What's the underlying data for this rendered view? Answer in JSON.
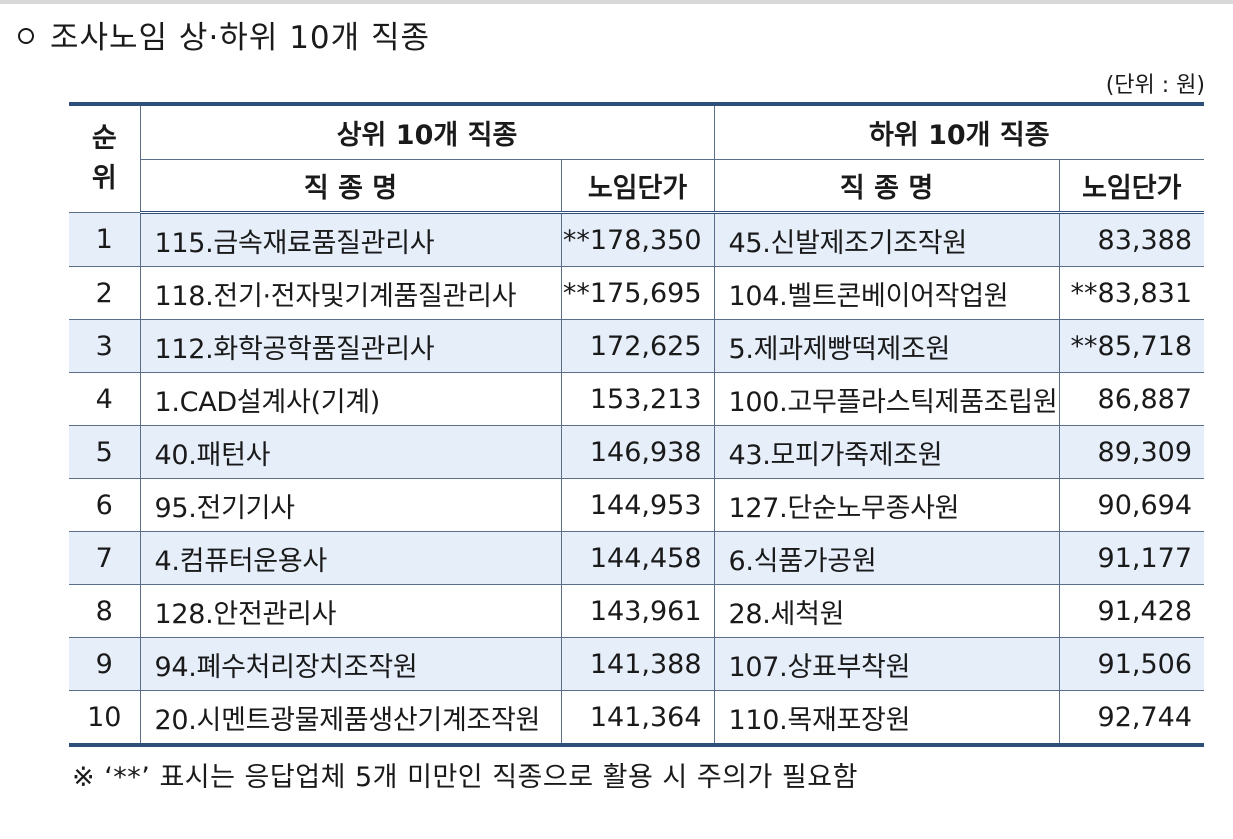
{
  "heading": "조사노임 상·하위 10개 직종",
  "unit": "(단위 : 원)",
  "table": {
    "rank_header": "순 위",
    "rank_header_top": "순",
    "rank_header_bottom": "위",
    "upper_group": "상위 10개 직종",
    "lower_group": "하위 10개 직종",
    "name_header": "직 종 명",
    "wage_header": "노임단가",
    "rows": [
      {
        "rank": "1",
        "upper_name": "115.금속재료품질관리사",
        "upper_wage": "**178,350",
        "lower_name": "45.신발제조기조작원",
        "lower_wage": "83,388"
      },
      {
        "rank": "2",
        "upper_name": "118.전기·전자및기계품질관리사",
        "upper_wage": "**175,695",
        "lower_name": "104.벨트콘베이어작업원",
        "lower_wage": "**83,831"
      },
      {
        "rank": "3",
        "upper_name": "112.화학공학품질관리사",
        "upper_wage": "172,625",
        "lower_name": "5.제과제빵떡제조원",
        "lower_wage": "**85,718"
      },
      {
        "rank": "4",
        "upper_name": "1.CAD설계사(기계)",
        "upper_wage": "153,213",
        "lower_name": "100.고무플라스틱제품조립원",
        "lower_wage": "86,887"
      },
      {
        "rank": "5",
        "upper_name": "40.패턴사",
        "upper_wage": "146,938",
        "lower_name": "43.모피가죽제조원",
        "lower_wage": "89,309"
      },
      {
        "rank": "6",
        "upper_name": "95.전기기사",
        "upper_wage": "144,953",
        "lower_name": "127.단순노무종사원",
        "lower_wage": "90,694"
      },
      {
        "rank": "7",
        "upper_name": "4.컴퓨터운용사",
        "upper_wage": "144,458",
        "lower_name": "6.식품가공원",
        "lower_wage": "91,177"
      },
      {
        "rank": "8",
        "upper_name": "128.안전관리사",
        "upper_wage": "143,961",
        "lower_name": "28.세척원",
        "lower_wage": "91,428"
      },
      {
        "rank": "9",
        "upper_name": "94.폐수처리장치조작원",
        "upper_wage": "141,388",
        "lower_name": "107.상표부착원",
        "lower_wage": "91,506"
      },
      {
        "rank": "10",
        "upper_name": "20.시멘트광물제품생산기계조작원",
        "upper_wage": "141,364",
        "lower_name": "110.목재포장원",
        "lower_wage": "92,744"
      }
    ]
  },
  "footnote": "※ ‘**’ 표시는 응답업체 5개 미만인 직종으로 활용 시 주의가 필요함",
  "colors": {
    "rule": "#2e4f7a",
    "shade": "#e6eefa"
  }
}
